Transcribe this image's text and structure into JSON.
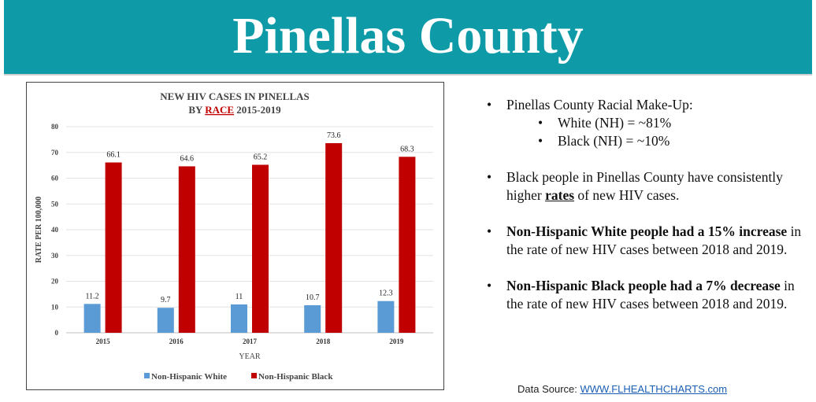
{
  "header": {
    "title": "Pinellas County"
  },
  "chart_data": {
    "type": "bar",
    "title_line1": "NEW HIV CASES IN PINELLAS",
    "title_line2_prefix": "BY ",
    "title_line2_emph": "RACE",
    "title_line2_suffix": " 2015-2019",
    "xlabel": "YEAR",
    "ylabel": "RATE PER 100,000",
    "ylim": [
      0,
      80
    ],
    "yticks": [
      0,
      10,
      20,
      30,
      40,
      50,
      60,
      70,
      80
    ],
    "categories": [
      "2015",
      "2016",
      "2017",
      "2018",
      "2019"
    ],
    "series": [
      {
        "name": "Non-Hispanic White",
        "color": "#5b9bd5",
        "values": [
          11.2,
          9.7,
          11,
          10.7,
          12.3
        ],
        "labels": [
          "11.2",
          "9.7",
          "11",
          "10.7",
          "12.3"
        ]
      },
      {
        "name": "Non-Hispanic Black",
        "color": "#c00000",
        "values": [
          66.1,
          64.6,
          65.2,
          73.6,
          68.3
        ],
        "labels": [
          "66.1",
          "64.6",
          "65.2",
          "73.6",
          "68.3"
        ]
      }
    ],
    "grid": true,
    "legend": "bottom"
  },
  "bullets": {
    "racial_makeup": "Pinellas County Racial Make-Up:",
    "white": "White (NH) = ~81%",
    "black": "Black (NH) = ~10%",
    "b2_pre": "Black people in Pinellas County have consistently higher ",
    "b2_emph": "rates",
    "b2_post": " of new HIV cases.",
    "b3_bold": "Non-Hispanic White people had a 15% increase",
    "b3_post": " in the rate of new HIV cases between 2018 and 2019.",
    "b4_bold": "Non-Hispanic Black people had a 7% decrease",
    "b4_post": " in the rate of new HIV cases between 2018 and 2019.",
    "dot": "•"
  },
  "source": {
    "label": "Data Source: ",
    "link_text": "WWW.FLHEALTHCHARTS.com"
  }
}
